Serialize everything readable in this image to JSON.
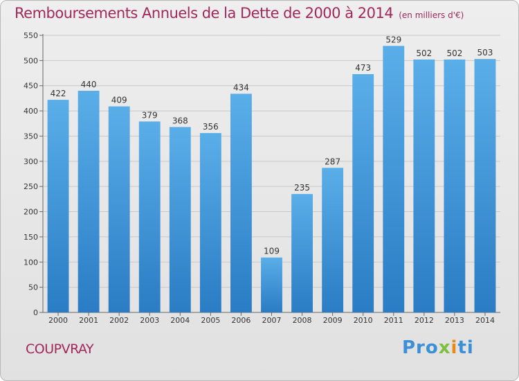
{
  "title": {
    "main": "Remboursements Annuels de la Dette de 2000 à 2014",
    "unit": "(en milliers d'€)"
  },
  "chart_data": {
    "type": "bar",
    "categories": [
      "2000",
      "2001",
      "2002",
      "2003",
      "2004",
      "2005",
      "2006",
      "2007",
      "2008",
      "2009",
      "2010",
      "2011",
      "2012",
      "2013",
      "2014"
    ],
    "values": [
      422,
      440,
      409,
      379,
      368,
      356,
      434,
      109,
      235,
      287,
      473,
      529,
      502,
      502,
      503
    ],
    "ylim": [
      0,
      550
    ],
    "yticks": [
      0,
      50,
      100,
      150,
      200,
      250,
      300,
      350,
      400,
      450,
      500,
      550
    ],
    "grid": true,
    "xlabel": "",
    "ylabel": "",
    "bar_color": "#3a8fd6"
  },
  "footer": {
    "town": "COUPVRAY",
    "logo_parts": [
      "Pro",
      "x",
      "i",
      "ti"
    ]
  },
  "colors": {
    "accent": "#a0285a",
    "bar": "#3a8fd6"
  }
}
